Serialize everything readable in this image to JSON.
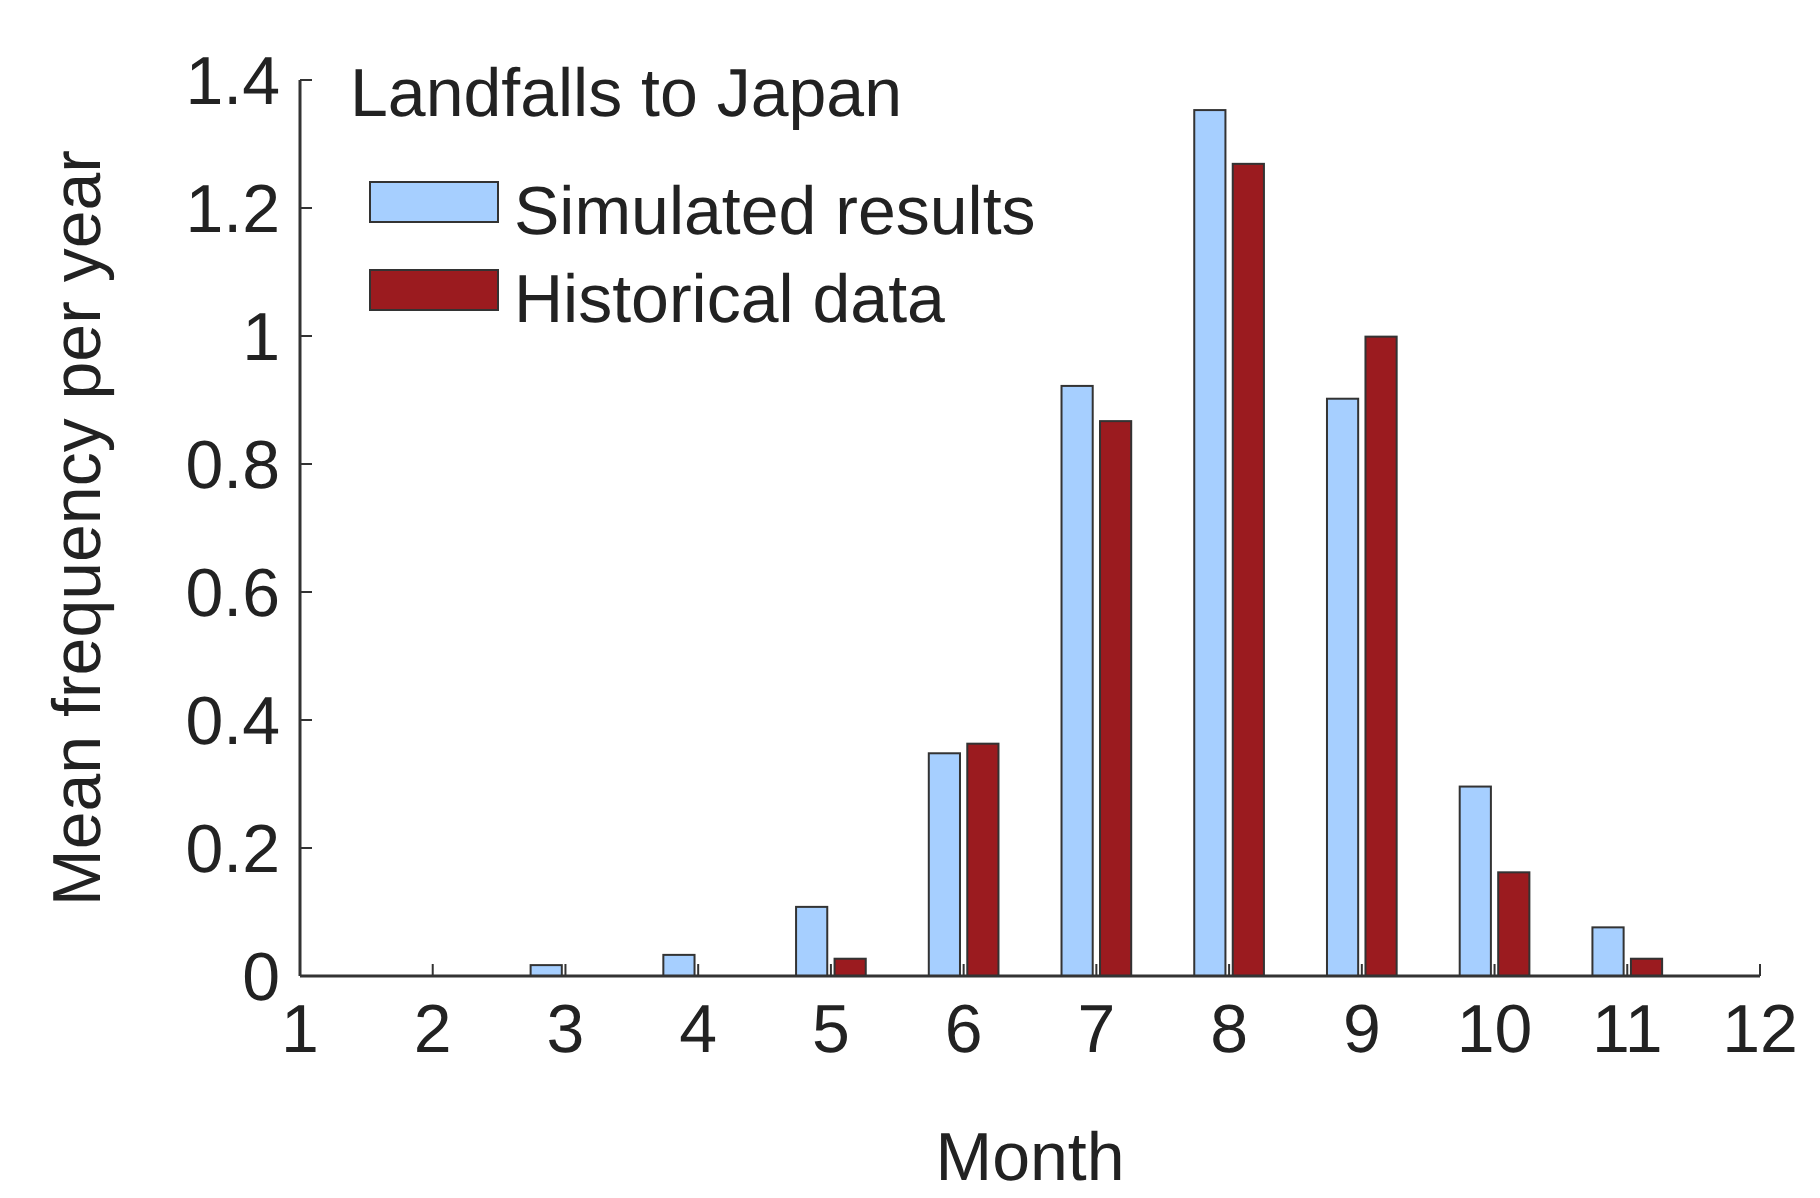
{
  "chart_data": {
    "type": "bar",
    "title": "Landfalls to Japan",
    "xlabel": "Month",
    "ylabel": "Mean frequency per year",
    "x": [
      1,
      2,
      3,
      4,
      5,
      6,
      7,
      8,
      9,
      10,
      11,
      12
    ],
    "series": [
      {
        "name": "Simulated results",
        "color": "#a6cfff",
        "values": [
          0,
          0,
          0.017,
          0.033,
          0.108,
          0.348,
          0.922,
          1.353,
          0.902,
          0.296,
          0.076,
          null
        ]
      },
      {
        "name": "Historical data",
        "color": "#9b1b1f",
        "values": [
          0,
          0,
          0,
          0,
          0.027,
          0.363,
          0.867,
          1.269,
          0.999,
          0.162,
          0.027,
          0
        ]
      }
    ],
    "xlim": [
      1,
      12
    ],
    "xticks": [
      1,
      2,
      3,
      4,
      5,
      6,
      7,
      8,
      9,
      10,
      11,
      12
    ],
    "ylim": [
      0,
      1.4
    ],
    "yticks": [
      0,
      0.2,
      0.4,
      0.6,
      0.8,
      1,
      1.2,
      1.4
    ],
    "legend": "top left",
    "grid": false
  }
}
